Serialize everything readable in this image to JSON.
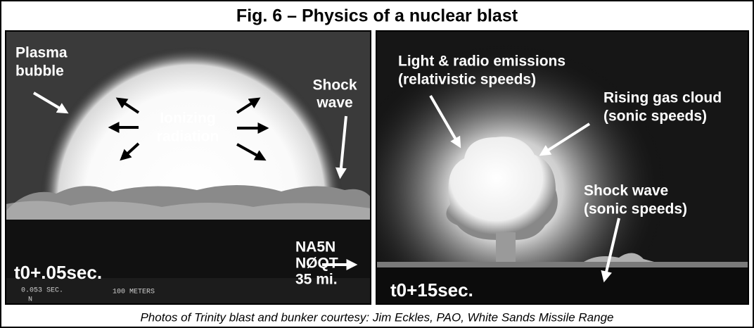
{
  "title": "Fig. 6 – Physics of a nuclear blast",
  "left_photo": {
    "plasma_bubble": [
      "Plasma",
      "bubble"
    ],
    "ionizing_radiation": [
      "Ionizing",
      "radiation"
    ],
    "shock_wave": [
      "Shock",
      "wave"
    ],
    "time": "t0+.05sec.",
    "station": [
      "NA5N",
      "NØQT",
      "35 mi."
    ],
    "film_marks": [
      "0.053 SEC.",
      "N",
      "100 METERS"
    ]
  },
  "right_photo": {
    "light_radio": [
      "Light & radio emissions",
      "(relativistic speeds)"
    ],
    "rising_cloud": [
      "Rising gas cloud",
      "(sonic speeds)"
    ],
    "shock_wave": [
      "Shock wave",
      "(sonic speeds)"
    ],
    "time": "t0+15sec."
  },
  "caption": "Photos of Trinity blast and bunker courtesy: Jim Eckles, PAO, White Sands Missile Range"
}
